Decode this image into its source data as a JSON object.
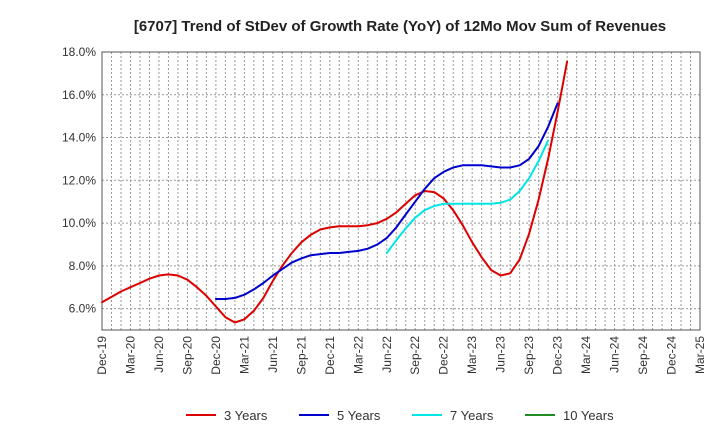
{
  "chart_data": {
    "type": "line",
    "title": "[6707]  Trend of StDev of Growth Rate (YoY) of 12Mo Mov Sum of Revenues",
    "xlabel": "",
    "ylabel": "",
    "ylim": [
      5.0,
      18.0
    ],
    "y_ticks": [
      6.0,
      8.0,
      10.0,
      12.0,
      14.0,
      16.0,
      18.0
    ],
    "y_tick_labels": [
      "6.0%",
      "8.0%",
      "10.0%",
      "12.0%",
      "14.0%",
      "16.0%",
      "18.0%"
    ],
    "x_tick_labels": [
      "Dec-19",
      "Mar-20",
      "Jun-20",
      "Sep-20",
      "Dec-20",
      "Mar-21",
      "Jun-21",
      "Sep-21",
      "Dec-21",
      "Mar-22",
      "Jun-22",
      "Sep-22",
      "Dec-22",
      "Mar-23",
      "Jun-23",
      "Sep-23",
      "Dec-23",
      "Mar-24",
      "Jun-24",
      "Sep-24",
      "Dec-24",
      "Mar-25"
    ],
    "grid": true,
    "legend_position": "bottom",
    "series": [
      {
        "name": "3 Years",
        "color": "#dd0000",
        "start_index": 0,
        "values": [
          6.3,
          6.55,
          6.8,
          7.0,
          7.2,
          7.4,
          7.55,
          7.6,
          7.55,
          7.35,
          7.0,
          6.6,
          6.1,
          5.6,
          5.35,
          5.5,
          5.9,
          6.5,
          7.3,
          8.0,
          8.6,
          9.1,
          9.45,
          9.7,
          9.8,
          9.85,
          9.85,
          9.85,
          9.9,
          10.0,
          10.2,
          10.5,
          10.9,
          11.3,
          11.5,
          11.45,
          11.15,
          10.6,
          9.9,
          9.1,
          8.4,
          7.8,
          7.55,
          7.65,
          8.3,
          9.5,
          11.1,
          13.0,
          15.2,
          17.55
        ]
      },
      {
        "name": "5 Years",
        "color": "#0000cc",
        "start_index": 12,
        "values": [
          6.45,
          6.45,
          6.5,
          6.65,
          6.9,
          7.2,
          7.55,
          7.85,
          8.15,
          8.35,
          8.5,
          8.55,
          8.6,
          8.6,
          8.65,
          8.7,
          8.8,
          9.0,
          9.3,
          9.8,
          10.4,
          11.0,
          11.6,
          12.1,
          12.4,
          12.6,
          12.7,
          12.7,
          12.7,
          12.65,
          12.6,
          12.6,
          12.7,
          13.0,
          13.6,
          14.5,
          15.6
        ]
      },
      {
        "name": "7 Years",
        "color": "#00e5e5",
        "start_index": 30,
        "values": [
          8.6,
          9.2,
          9.75,
          10.25,
          10.6,
          10.8,
          10.9,
          10.9,
          10.9,
          10.9,
          10.9,
          10.9,
          10.95,
          11.1,
          11.5,
          12.1,
          12.9,
          13.85
        ]
      },
      {
        "name": "10 Years",
        "color": "#228b22",
        "start_index": 0,
        "values": []
      }
    ]
  }
}
